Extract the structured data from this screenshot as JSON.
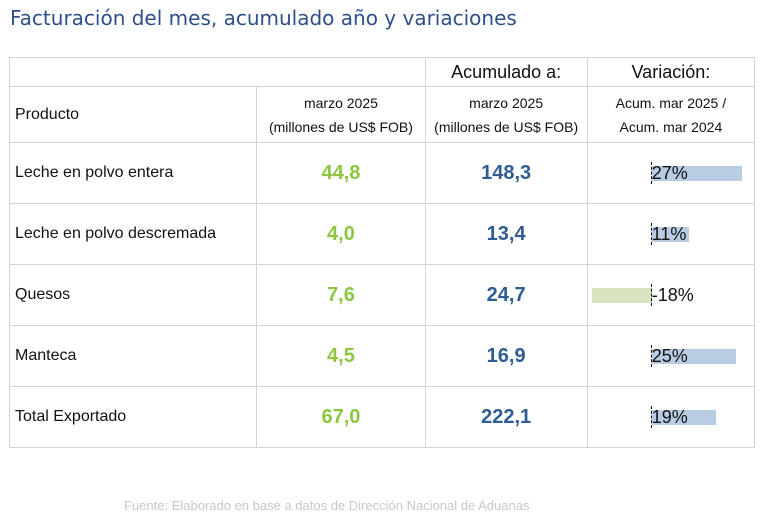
{
  "title": "Facturación del mes, acumulado año y variaciones",
  "headers": {
    "acumulado": "Acumulado a:",
    "variacion": "Variación:",
    "producto": "Producto",
    "month_line1": "marzo 2025",
    "month_line2": "(millones de US$ FOB)",
    "acc_line1": "marzo 2025",
    "acc_line2": "(millones de US$ FOB)",
    "var_line1": "Acum. mar 2025 /",
    "var_line2": "Acum. mar 2024"
  },
  "rows": [
    {
      "producto": "Leche en polvo entera",
      "mes": "44,8",
      "acumulado": "148,3",
      "variacion": "27%",
      "variacion_value": 27
    },
    {
      "producto": "Leche en polvo descremada",
      "mes": "4,0",
      "acumulado": "13,4",
      "variacion": "11%",
      "variacion_value": 11
    },
    {
      "producto": "Quesos",
      "mes": "7,6",
      "acumulado": "24,7",
      "variacion": "-18%",
      "variacion_value": -18
    },
    {
      "producto": "Manteca",
      "mes": "4,5",
      "acumulado": "16,9",
      "variacion": "25%",
      "variacion_value": 25
    },
    {
      "producto": "Total Exportado",
      "mes": "67,0",
      "acumulado": "222,1",
      "variacion": "19%",
      "variacion_value": 19
    }
  ],
  "colors": {
    "month_value": "#8dc63f",
    "acc_value": "#2e5c93",
    "bar_positive": "#b8cce4",
    "bar_negative": "#d7e4bd"
  },
  "source": "Fuente: Elaborado en base a datos de Dirección Nacional de Aduanas"
}
